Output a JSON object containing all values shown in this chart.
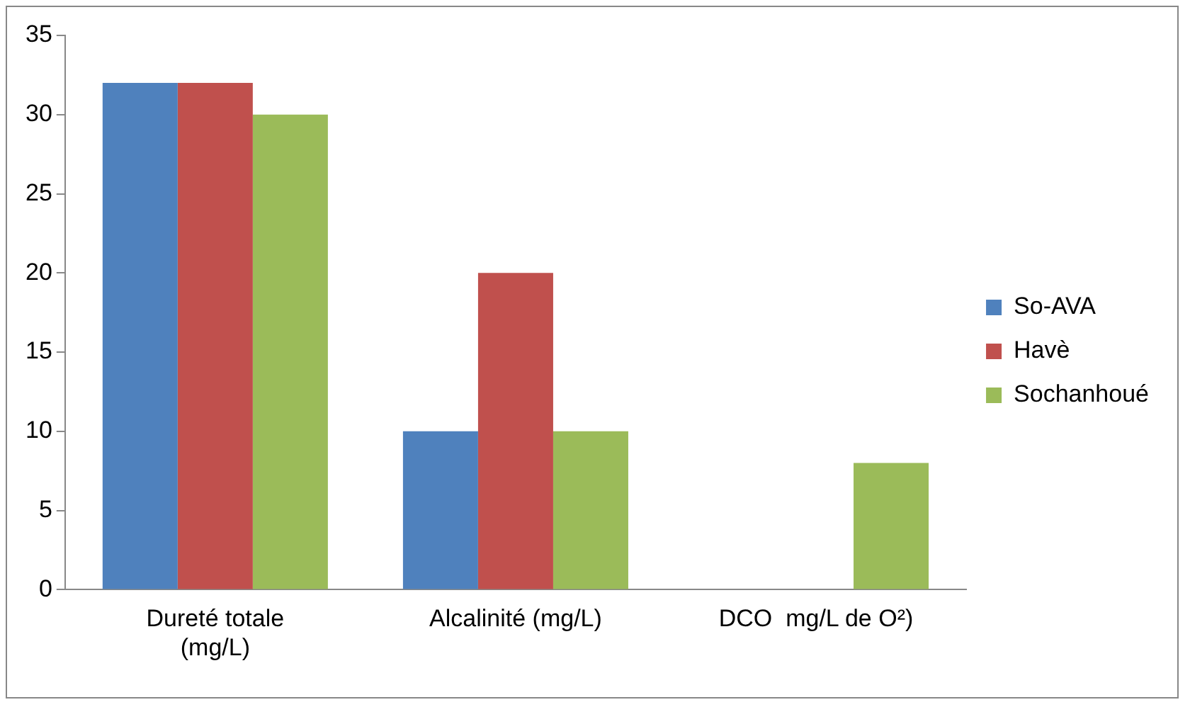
{
  "chart_data": {
    "type": "bar",
    "categories": [
      "Dureté totale (mg/L)",
      "Alcalinité (mg/L)",
      "DCO  mg/L de O²)"
    ],
    "series": [
      {
        "name": "So-AVA",
        "color": "#4f81bd",
        "values": [
          32,
          10,
          0
        ]
      },
      {
        "name": "Havè",
        "color": "#c0504d",
        "values": [
          32,
          20,
          0
        ]
      },
      {
        "name": "Sochanhoué",
        "color": "#9bbb59",
        "values": [
          30,
          10,
          8
        ]
      }
    ],
    "ylim": [
      0,
      35
    ],
    "yticks": [
      0,
      5,
      10,
      15,
      20,
      25,
      30,
      35
    ],
    "grid": false,
    "legend": "right"
  }
}
